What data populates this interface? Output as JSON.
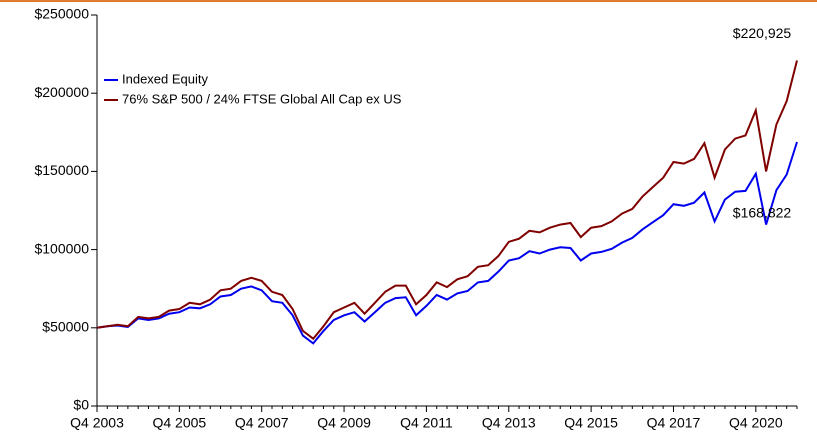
{
  "chart_data": {
    "type": "line",
    "categories": [
      "Q4 2003",
      null,
      null,
      null,
      null,
      null,
      null,
      null,
      "Q4 2005",
      null,
      null,
      null,
      null,
      null,
      null,
      null,
      "Q4 2007",
      null,
      null,
      null,
      null,
      null,
      null,
      null,
      "Q4 2009",
      null,
      null,
      null,
      null,
      null,
      null,
      null,
      "Q4 2011",
      null,
      null,
      null,
      null,
      null,
      null,
      null,
      "Q4 2013",
      null,
      null,
      null,
      null,
      null,
      null,
      null,
      "Q4 2015",
      null,
      null,
      null,
      null,
      null,
      null,
      null,
      "Q4 2017",
      null,
      null,
      null,
      null,
      null,
      null,
      null,
      "Q4 2020",
      null,
      null,
      null,
      null
    ],
    "series": [
      {
        "name": "Indexed Equity",
        "color": "#0000ee",
        "values": [
          50000,
          51000,
          51500,
          50500,
          56000,
          55000,
          56000,
          59000,
          60000,
          63000,
          62500,
          65000,
          70000,
          71000,
          75000,
          76500,
          74000,
          67000,
          66000,
          58000,
          45000,
          40000,
          48000,
          55000,
          58000,
          60000,
          54000,
          60000,
          66000,
          69000,
          69500,
          58000,
          64000,
          71000,
          68000,
          72000,
          73500,
          79000,
          80000,
          86000,
          93000,
          94500,
          99000,
          97500,
          100000,
          101500,
          101000,
          93000,
          97500,
          98500,
          100500,
          104500,
          107500,
          113000,
          117500,
          122000,
          129000,
          128000,
          130000,
          136500,
          118000,
          132000,
          137000,
          137500,
          148500,
          116000,
          138000,
          148000,
          168822
        ],
        "value_labels": [
          null,
          null,
          null,
          null,
          null,
          null,
          null,
          null,
          null,
          null,
          null,
          null,
          null,
          null,
          null,
          null,
          null,
          null,
          null,
          null,
          null,
          null,
          null,
          null,
          null,
          null,
          null,
          null,
          null,
          null,
          null,
          null,
          null,
          null,
          null,
          null,
          null,
          null,
          null,
          null,
          null,
          null,
          null,
          null,
          null,
          null,
          null,
          null,
          null,
          null,
          null,
          null,
          null,
          null,
          null,
          null,
          null,
          null,
          null,
          null,
          null,
          null,
          null,
          null,
          null,
          null,
          null,
          null,
          "$168,822"
        ]
      },
      {
        "name": "76% S&P 500 / 24% FTSE Global All Cap ex US",
        "color": "#800000",
        "values": [
          50000,
          51000,
          52000,
          51000,
          57000,
          56000,
          57000,
          61000,
          62000,
          66000,
          65000,
          68000,
          74000,
          75000,
          80000,
          82000,
          80000,
          73000,
          71000,
          62000,
          48000,
          43000,
          51000,
          60000,
          63000,
          66000,
          59000,
          66000,
          73000,
          77000,
          77000,
          65000,
          71000,
          79000,
          76000,
          81000,
          83000,
          89000,
          90000,
          96000,
          105000,
          107000,
          112000,
          111000,
          114000,
          116000,
          117000,
          108000,
          114000,
          115000,
          118000,
          123000,
          126000,
          134000,
          140000,
          146000,
          156000,
          155000,
          158000,
          168000,
          146000,
          164000,
          171000,
          173000,
          189000,
          150000,
          180000,
          195000,
          220925
        ],
        "value_labels": [
          null,
          null,
          null,
          null,
          null,
          null,
          null,
          null,
          null,
          null,
          null,
          null,
          null,
          null,
          null,
          null,
          null,
          null,
          null,
          null,
          null,
          null,
          null,
          null,
          null,
          null,
          null,
          null,
          null,
          null,
          null,
          null,
          null,
          null,
          null,
          null,
          null,
          null,
          null,
          null,
          null,
          null,
          null,
          null,
          null,
          null,
          null,
          null,
          null,
          null,
          null,
          null,
          null,
          null,
          null,
          null,
          null,
          null,
          null,
          null,
          null,
          null,
          null,
          null,
          null,
          null,
          null,
          null,
          "$220,925"
        ]
      }
    ],
    "ylim": [
      0,
      250000
    ],
    "yticks": [
      {
        "value": 0,
        "label": "$0"
      },
      {
        "value": 50000,
        "label": "$50000"
      },
      {
        "value": 100000,
        "label": "$100000"
      },
      {
        "value": 150000,
        "label": "$150000"
      },
      {
        "value": 200000,
        "label": "$200000"
      },
      {
        "value": 250000,
        "label": "$250000"
      }
    ],
    "grid": false,
    "legend": "upper left"
  }
}
